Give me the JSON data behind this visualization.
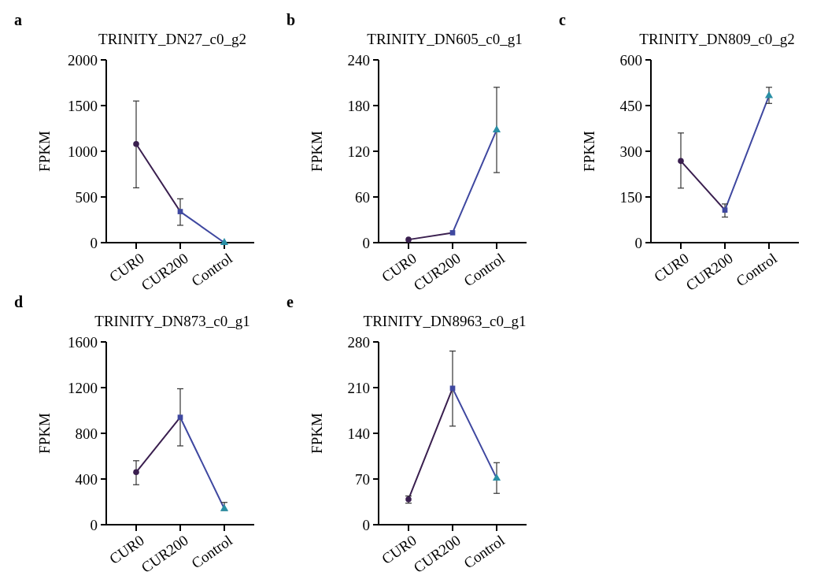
{
  "chart_data": [
    {
      "type": "line",
      "title": "TRINITY_DN27_c0_g2",
      "annotations": [
        "a"
      ],
      "ylabel": "FPKM",
      "categories": [
        "CUR0",
        "CUR200",
        "Control"
      ],
      "ylim": [
        0,
        2000
      ],
      "yticks": [
        0,
        500,
        1000,
        1500,
        2000
      ],
      "series": [
        {
          "color": "#3a1f4f",
          "marker": "none",
          "values": [
            1080,
            340,
            null
          ]
        },
        {
          "color": "#3f48a0",
          "marker": "none",
          "values": [
            null,
            340,
            0
          ]
        },
        {
          "type": "scatter",
          "color": "#3a1f4f",
          "marker": "circle",
          "values": [
            1080,
            null,
            null
          ],
          "errors": [
            [
              600,
              1550
            ],
            null,
            null
          ]
        },
        {
          "type": "scatter",
          "color": "#3f48a0",
          "marker": "square",
          "values": [
            null,
            340,
            null
          ],
          "errors": [
            null,
            [
              190,
              480
            ],
            null
          ]
        },
        {
          "type": "scatter",
          "color": "#2a8fa5",
          "marker": "triangle",
          "values": [
            null,
            null,
            0
          ]
        }
      ]
    },
    {
      "type": "line",
      "title": "TRINITY_DN605_c0_g1",
      "annotations": [
        "b"
      ],
      "ylabel": "FPKM",
      "categories": [
        "CUR0",
        "CUR200",
        "Control"
      ],
      "ylim": [
        0,
        240
      ],
      "yticks": [
        0,
        60,
        120,
        180,
        240
      ],
      "series": [
        {
          "color": "#3a1f4f",
          "marker": "none",
          "values": [
            4,
            13,
            null
          ]
        },
        {
          "color": "#3f48a0",
          "marker": "none",
          "values": [
            null,
            13,
            148
          ]
        },
        {
          "type": "scatter",
          "color": "#3a1f4f",
          "marker": "circle",
          "values": [
            4,
            null,
            null
          ]
        },
        {
          "type": "scatter",
          "color": "#3f48a0",
          "marker": "square",
          "values": [
            null,
            13,
            null
          ]
        },
        {
          "type": "scatter",
          "color": "#2a8fa5",
          "marker": "triangle",
          "values": [
            null,
            null,
            148
          ],
          "errors": [
            null,
            null,
            [
              92,
              204
            ]
          ]
        }
      ]
    },
    {
      "type": "line",
      "title": "TRINITY_DN809_c0_g2",
      "annotations": [
        "c"
      ],
      "ylabel": "FPKM",
      "categories": [
        "CUR0",
        "CUR200",
        "Control"
      ],
      "ylim": [
        0,
        600
      ],
      "yticks": [
        0,
        150,
        300,
        450,
        600
      ],
      "series": [
        {
          "color": "#3a1f4f",
          "marker": "none",
          "values": [
            268,
            107,
            null
          ]
        },
        {
          "color": "#3f48a0",
          "marker": "none",
          "values": [
            null,
            107,
            482
          ]
        },
        {
          "type": "scatter",
          "color": "#3a1f4f",
          "marker": "circle",
          "values": [
            268,
            null,
            null
          ],
          "errors": [
            [
              179,
              360
            ],
            null,
            null
          ]
        },
        {
          "type": "scatter",
          "color": "#3f48a0",
          "marker": "square",
          "values": [
            null,
            107,
            null
          ],
          "errors": [
            null,
            [
              84,
              127
            ],
            null
          ]
        },
        {
          "type": "scatter",
          "color": "#2a8fa5",
          "marker": "triangle",
          "values": [
            null,
            null,
            482
          ],
          "errors": [
            null,
            null,
            [
              457,
              510
            ]
          ]
        }
      ]
    },
    {
      "type": "line",
      "title": "TRINITY_DN873_c0_g1",
      "annotations": [
        "d"
      ],
      "ylabel": "FPKM",
      "categories": [
        "CUR0",
        "CUR200",
        "Control"
      ],
      "ylim": [
        0,
        1600
      ],
      "yticks": [
        0,
        400,
        800,
        1200,
        1600
      ],
      "series": [
        {
          "color": "#3a1f4f",
          "marker": "none",
          "values": [
            460,
            940,
            null
          ]
        },
        {
          "color": "#3f48a0",
          "marker": "none",
          "values": [
            null,
            940,
            140
          ]
        },
        {
          "type": "scatter",
          "color": "#3a1f4f",
          "marker": "circle",
          "values": [
            460,
            null,
            null
          ],
          "errors": [
            [
              350,
              560
            ],
            null,
            null
          ]
        },
        {
          "type": "scatter",
          "color": "#3f48a0",
          "marker": "square",
          "values": [
            null,
            940,
            null
          ],
          "errors": [
            null,
            [
              690,
              1190
            ],
            null
          ]
        },
        {
          "type": "scatter",
          "color": "#2a8fa5",
          "marker": "triangle",
          "values": [
            null,
            null,
            140
          ],
          "errors": [
            null,
            null,
            [
              125,
              195
            ]
          ]
        }
      ]
    },
    {
      "type": "line",
      "title": "TRINITY_DN8963_c0_g1",
      "annotations": [
        "e"
      ],
      "ylabel": "FPKM",
      "categories": [
        "CUR0",
        "CUR200",
        "Control"
      ],
      "ylim": [
        0,
        280
      ],
      "yticks": [
        0,
        70,
        140,
        210,
        280
      ],
      "series": [
        {
          "color": "#3a1f4f",
          "marker": "none",
          "values": [
            39,
            209,
            null
          ]
        },
        {
          "color": "#3f48a0",
          "marker": "none",
          "values": [
            null,
            209,
            71
          ]
        },
        {
          "type": "scatter",
          "color": "#3a1f4f",
          "marker": "circle",
          "values": [
            39,
            null,
            null
          ],
          "errors": [
            [
              33,
              44
            ],
            null,
            null
          ]
        },
        {
          "type": "scatter",
          "color": "#3f48a0",
          "marker": "square",
          "values": [
            null,
            209,
            null
          ],
          "errors": [
            null,
            [
              151,
              266
            ],
            null
          ]
        },
        {
          "type": "scatter",
          "color": "#2a8fa5",
          "marker": "triangle",
          "values": [
            null,
            null,
            71
          ],
          "errors": [
            null,
            null,
            [
              48,
              95
            ]
          ]
        }
      ]
    }
  ]
}
